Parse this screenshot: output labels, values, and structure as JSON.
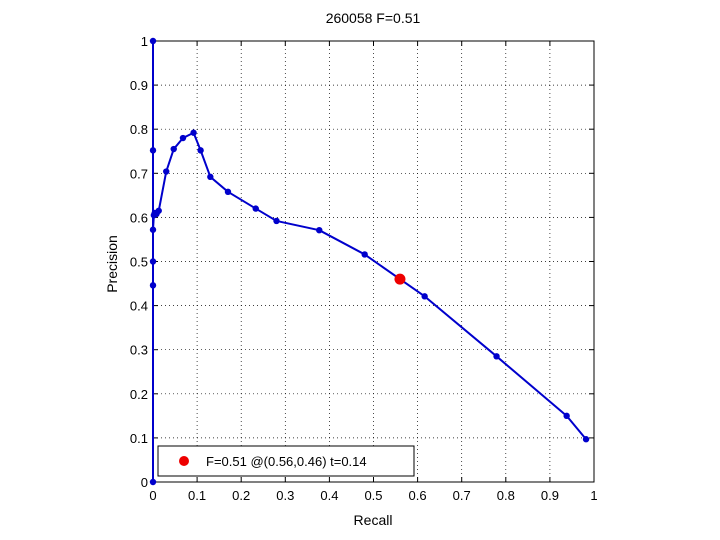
{
  "chart_data": {
    "type": "line",
    "title": "260058 F=0.51",
    "xlabel": "Recall",
    "ylabel": "Precision",
    "xlim": [
      0,
      1
    ],
    "ylim": [
      0,
      1
    ],
    "grid": true,
    "legend_position": "bottom-left",
    "xticks": [
      "0",
      "0.1",
      "0.2",
      "0.3",
      "0.4",
      "0.5",
      "0.6",
      "0.7",
      "0.8",
      "0.9",
      "1"
    ],
    "yticks": [
      "0",
      "0.1",
      "0.2",
      "0.3",
      "0.4",
      "0.5",
      "0.6",
      "0.7",
      "0.8",
      "0.9",
      "1"
    ],
    "series": [
      {
        "color": "#0000cc",
        "x": [
          0.0,
          0.0,
          0.0,
          0.0,
          0.0,
          0.0,
          0.002,
          0.004,
          0.008,
          0.013,
          0.03,
          0.047,
          0.068,
          0.092,
          0.108,
          0.13,
          0.17,
          0.233,
          0.28,
          0.377,
          0.48,
          0.616,
          0.779,
          0.938,
          0.982
        ],
        "y": [
          0.0,
          1.0,
          0.752,
          0.446,
          0.5,
          0.572,
          0.605,
          0.61,
          0.608,
          0.615,
          0.704,
          0.755,
          0.78,
          0.792,
          0.752,
          0.692,
          0.658,
          0.62,
          0.592,
          0.571,
          0.516,
          0.421,
          0.285,
          0.15,
          0.097
        ]
      }
    ],
    "best_point": {
      "recall": 0.56,
      "precision": 0.46,
      "color": "#ee0000"
    },
    "legend_label": "F=0.51 @(0.56,0.46) t=0.14"
  }
}
